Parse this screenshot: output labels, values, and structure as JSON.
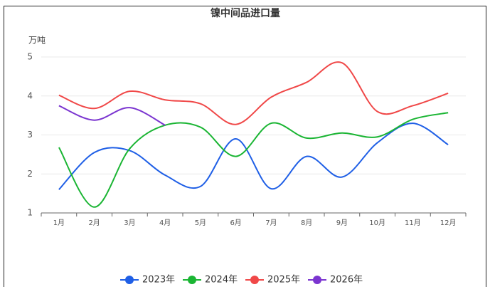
{
  "chart_data": {
    "type": "line",
    "title": "镍中间品进口量",
    "y_label": "万吨",
    "categories": [
      "1月",
      "2月",
      "3月",
      "4月",
      "5月",
      "6月",
      "7月",
      "8月",
      "9月",
      "10月",
      "11月",
      "12月"
    ],
    "ylim": [
      1,
      5
    ],
    "yticks": [
      1,
      2,
      3,
      4,
      5
    ],
    "grid": true,
    "smooth": true,
    "legend": "bottom",
    "series": [
      {
        "name": "2023年",
        "color": "#1f5fe6",
        "values": [
          1.6,
          2.55,
          2.6,
          1.97,
          1.68,
          2.9,
          1.62,
          2.45,
          1.92,
          2.8,
          3.3,
          2.75
        ]
      },
      {
        "name": "2024年",
        "color": "#1ab533",
        "values": [
          2.68,
          1.15,
          2.65,
          3.25,
          3.2,
          2.45,
          3.3,
          2.92,
          3.05,
          2.95,
          3.4,
          3.57
        ]
      },
      {
        "name": "2025年",
        "color": "#f04848",
        "values": [
          4.02,
          3.68,
          4.12,
          3.9,
          3.8,
          3.27,
          3.97,
          4.35,
          4.85,
          3.6,
          3.75,
          4.07
        ]
      },
      {
        "name": "2026年",
        "color": "#7b35d0",
        "values": [
          3.75,
          3.38,
          3.7,
          3.25,
          null,
          null,
          null,
          null,
          null,
          null,
          null,
          null
        ]
      }
    ]
  }
}
